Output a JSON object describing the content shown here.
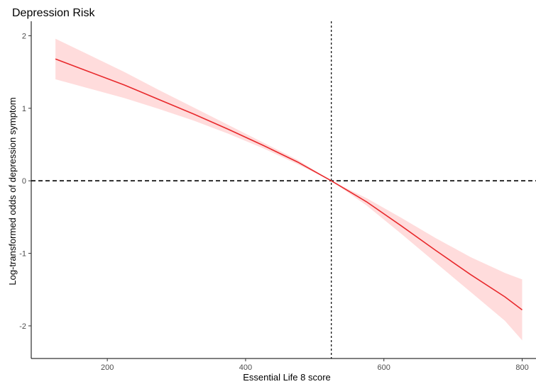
{
  "chart_data": {
    "type": "line",
    "title": "Depression Risk",
    "xlabel": "Essential Life 8 score",
    "ylabel": "Log-transformed odds of depression symptom",
    "xlim": [
      90,
      820
    ],
    "ylim": [
      -2.45,
      2.2
    ],
    "xticks": [
      200,
      400,
      600,
      800
    ],
    "yticks": [
      -2,
      -1,
      0,
      1,
      2
    ],
    "grid": false,
    "legend": "none",
    "colors": {
      "line": "#e8292c",
      "band": "#ffd6d6",
      "reference": "#000000"
    },
    "reference_lines": {
      "vertical_x": 524,
      "horizontal_y": 0
    },
    "series": [
      {
        "x": [
          125,
          175,
          225,
          275,
          325,
          375,
          425,
          475,
          524,
          575,
          625,
          675,
          725,
          775,
          800
        ],
        "y": [
          1.68,
          1.5,
          1.32,
          1.12,
          0.92,
          0.71,
          0.49,
          0.26,
          0.0,
          -0.29,
          -0.62,
          -0.96,
          -1.29,
          -1.6,
          -1.78
        ],
        "lower": [
          1.4,
          1.27,
          1.14,
          0.99,
          0.83,
          0.65,
          0.45,
          0.23,
          0.0,
          -0.34,
          -0.73,
          -1.13,
          -1.53,
          -1.93,
          -2.2
        ],
        "upper": [
          1.96,
          1.73,
          1.5,
          1.25,
          1.01,
          0.77,
          0.53,
          0.29,
          0.0,
          -0.24,
          -0.51,
          -0.79,
          -1.05,
          -1.27,
          -1.36
        ]
      }
    ]
  }
}
